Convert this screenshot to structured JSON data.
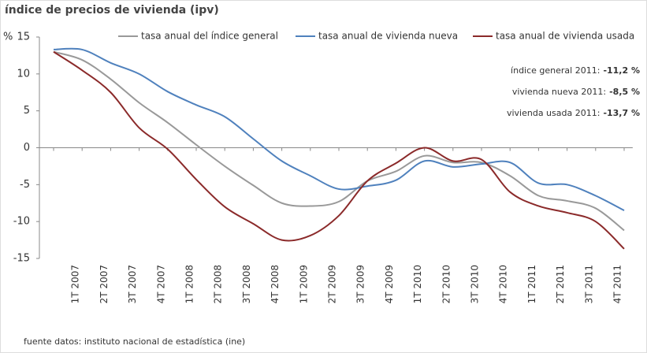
{
  "chart_data": {
    "type": "line",
    "title": "índice de precios de vivienda (ipv)",
    "y_label": "%",
    "source": "fuente datos: instituto nacional de estadística (ine)",
    "categories": [
      null,
      "1T 2007",
      "2T 2007",
      "3T 2007",
      "4T 2007",
      "1T 2008",
      "2T 2008",
      "3T 2008",
      "4T 2008",
      "1T 2009",
      "2T 2009",
      "3T 2009",
      "4T 2009",
      "1T 2010",
      "2T 2010",
      "3T 2010",
      "4T 2010",
      "1T 2011",
      "2T 2011",
      "3T 2011",
      "4T 2011"
    ],
    "series": [
      {
        "name": "tasa anual del índice general",
        "color": "#999999",
        "values": [
          13,
          11.9,
          9.3,
          6.1,
          3.4,
          0.4,
          -2.5,
          -5.1,
          -7.5,
          -7.9,
          -7.3,
          -4.5,
          -3.2,
          -1.1,
          -2.0,
          -2.0,
          -3.8,
          -6.5,
          -7.2,
          -8.2,
          -11.2
        ]
      },
      {
        "name": "tasa anual de vivienda nueva",
        "color": "#4f81bd",
        "values": [
          13.3,
          13.3,
          11.5,
          10.0,
          7.6,
          5.8,
          4.2,
          1.2,
          -1.8,
          -3.8,
          -5.6,
          -5.2,
          -4.4,
          -1.8,
          -2.6,
          -2.2,
          -2.0,
          -4.8,
          -5.0,
          -6.5,
          -8.5
        ]
      },
      {
        "name": "tasa anual de vivienda usada",
        "color": "#8b2a2a",
        "values": [
          13,
          10.5,
          7.5,
          2.7,
          -0.2,
          -4.3,
          -8.0,
          -10.3,
          -12.5,
          -11.9,
          -9.2,
          -4.5,
          -2.1,
          0,
          -1.8,
          -1.6,
          -6.0,
          -7.9,
          -8.8,
          -10.0,
          -13.7
        ]
      }
    ],
    "annotations": [
      {
        "label": "índice general 2011:",
        "value": "-11,2 %"
      },
      {
        "label": "vivienda nueva 2011:",
        "value": "-8,5 %"
      },
      {
        "label": "vivienda usada 2011:",
        "value": "-13,7 %"
      }
    ],
    "ylim": [
      -15,
      15
    ],
    "yticks": [
      15,
      10,
      5,
      0,
      -5,
      -10,
      -15
    ]
  }
}
